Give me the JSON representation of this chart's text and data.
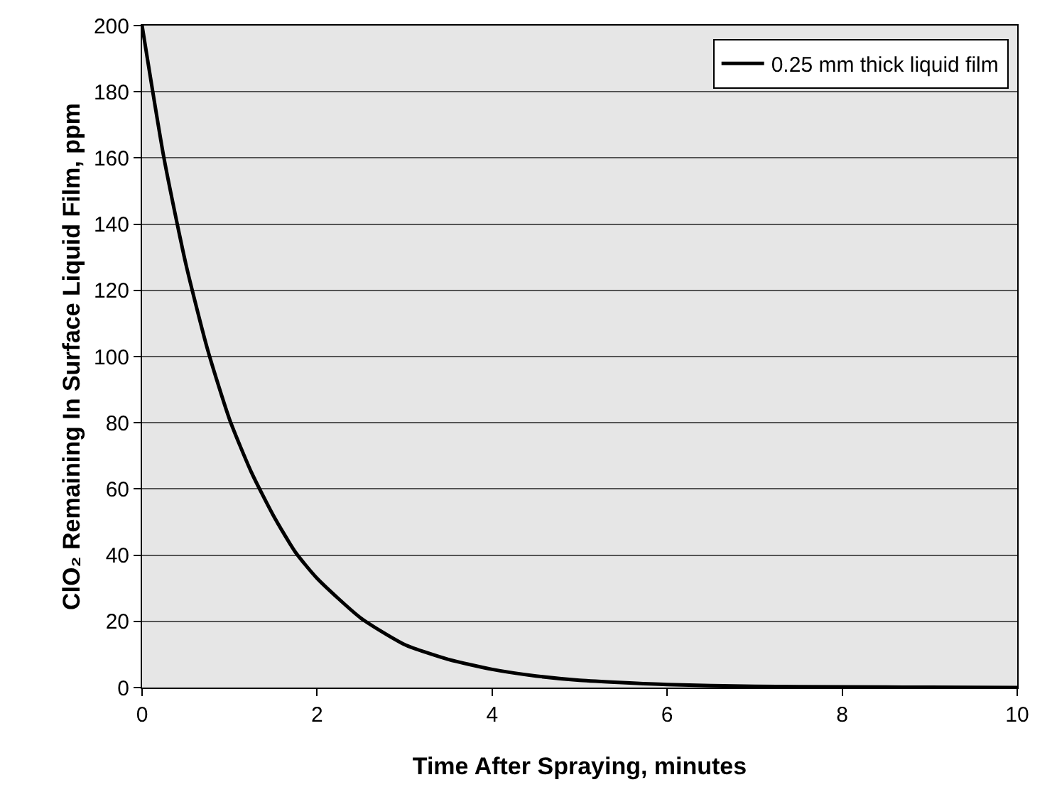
{
  "chart_data": {
    "type": "line",
    "xlabel": "Time After Spraying, minutes",
    "ylabel": "ClO₂ Remaining In Surface Liquid Film, ppm",
    "x": [
      0,
      0.25,
      0.5,
      0.75,
      1,
      1.25,
      1.5,
      1.75,
      2,
      2.5,
      3,
      3.5,
      4,
      4.5,
      5,
      6,
      7,
      8,
      9,
      10
    ],
    "series": [
      {
        "name": "0.25 mm thick liquid film",
        "color": "#000000",
        "values": [
          200,
          160,
          128,
          102,
          81,
          65,
          52,
          41,
          33,
          21,
          13,
          8.5,
          5.5,
          3.5,
          2.2,
          0.9,
          0.4,
          0.2,
          0.1,
          0
        ]
      }
    ],
    "xlim": [
      0,
      10
    ],
    "xticks": [
      0,
      2,
      4,
      6,
      8,
      10
    ],
    "ylim": [
      0,
      200
    ],
    "yticks": [
      0,
      20,
      40,
      60,
      80,
      100,
      120,
      140,
      160,
      180,
      200
    ],
    "grid": "y",
    "legend": "top right",
    "marker": "none",
    "line_style": "solid"
  }
}
